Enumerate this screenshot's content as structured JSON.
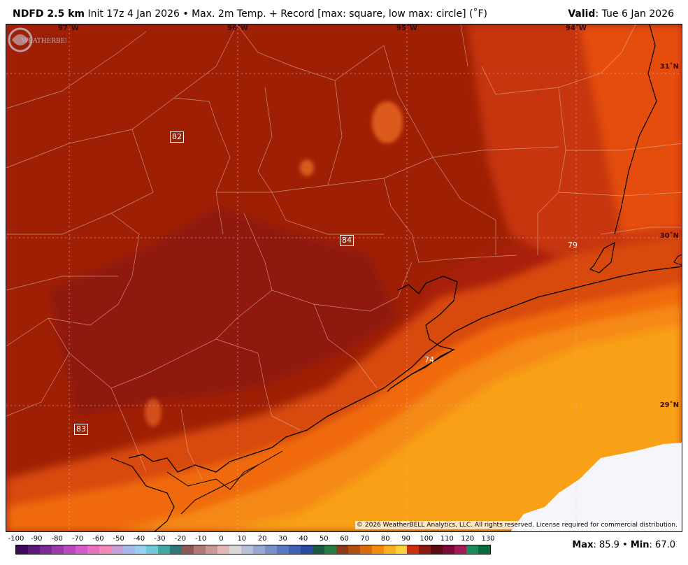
{
  "header": {
    "model": "NDFD 2.5 km",
    "init": "Init 17z 4 Jan 2026",
    "description": "• Max. 2m Temp. + Record [max: square, low max: circle] (˚F)",
    "valid_label": "Valid",
    "valid_value": ": Tue 6 Jan 2026"
  },
  "map": {
    "lon_labels": [
      "97˚W",
      "96˚W",
      "95˚W",
      "94˚W"
    ],
    "lat_labels": [
      "31˚N",
      "30˚N",
      "29˚N"
    ],
    "record_squares": [
      "82",
      "84",
      "83"
    ],
    "record_circles": [
      "79",
      "74"
    ],
    "copyright": "© 2026 WeatherBELL Analytics, LLC. All rights reserved. License required for commercial distribution.",
    "logo_text": "WEATHERBELL"
  },
  "colorbar": {
    "ticks": [
      "-100",
      "-90",
      "-80",
      "-70",
      "-60",
      "-50",
      "-40",
      "-30",
      "-20",
      "-10",
      "0",
      "10",
      "20",
      "30",
      "40",
      "50",
      "60",
      "70",
      "80",
      "90",
      "100",
      "110",
      "120",
      "130"
    ],
    "colors": [
      "#3b0a5c",
      "#5b1a7a",
      "#7a2a92",
      "#9a3aa8",
      "#b84abc",
      "#d45ac8",
      "#e870c0",
      "#f08ab8",
      "#c8a0d8",
      "#a8b8e8",
      "#98d0f0",
      "#70c8d8",
      "#40a8a0",
      "#307878",
      "#8a5a5a",
      "#b07878",
      "#c89898",
      "#e0b8b8",
      "#d8d8d8",
      "#b8c0d8",
      "#98a8d0",
      "#7890c8",
      "#5878c0",
      "#4060b0",
      "#2a4aa0",
      "#1a5a40",
      "#2a7a48",
      "#8a3a1a",
      "#b05010",
      "#d86a10",
      "#f08a10",
      "#f8b020",
      "#fcd040",
      "#c83010",
      "#8a1a10",
      "#5a0a10",
      "#7a0a3a",
      "#a01a5a",
      "#1a8a5a",
      "#0a6a3a"
    ]
  },
  "stats": {
    "max_label": "Max",
    "max_value": ": 85.9",
    "sep": " • ",
    "min_label": "Min",
    "min_value": ": 67.0"
  }
}
